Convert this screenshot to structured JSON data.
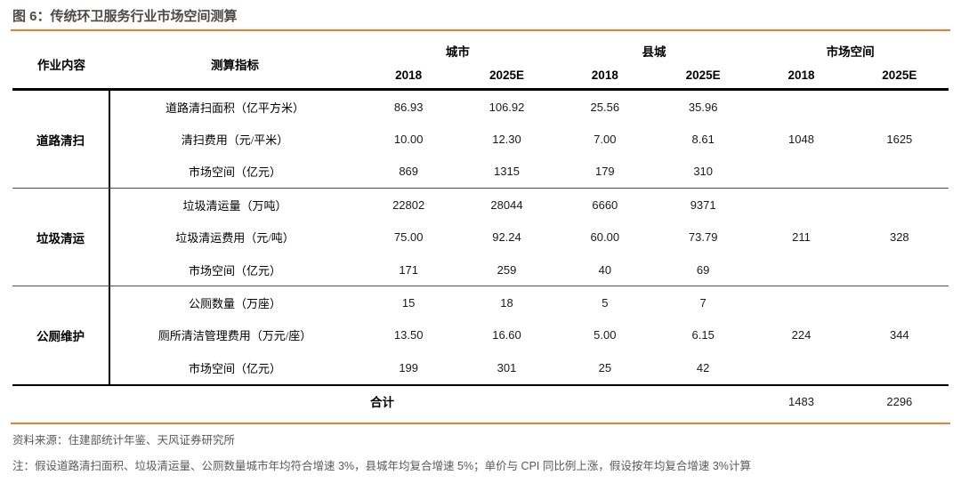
{
  "title": "图 6：传统环卫服务行业市场空间测算",
  "theme": {
    "accent_orange": "#ED7D31",
    "title_color": "#4F4A46",
    "footer_text_color": "#595959",
    "table_text_color": "#000000"
  },
  "table": {
    "col_headers": {
      "content": "作业内容",
      "indicator": "测算指标",
      "groups": [
        {
          "label": "城市",
          "years": [
            "2018",
            "2025E"
          ]
        },
        {
          "label": "县城",
          "years": [
            "2018",
            "2025E"
          ]
        },
        {
          "label": "市场空间",
          "years": [
            "2018",
            "2025E"
          ]
        }
      ]
    },
    "row_groups": [
      {
        "category": "道路清扫",
        "rows": [
          {
            "indicator": "道路清扫面积（亿平方米）",
            "values": [
              "86.93",
              "106.92",
              "25.56",
              "35.96",
              "",
              ""
            ]
          },
          {
            "indicator": "清扫费用（元/平米）",
            "values": [
              "10.00",
              "12.30",
              "7.00",
              "8.61",
              "1048",
              "1625"
            ]
          },
          {
            "indicator": "市场空间（亿元）",
            "values": [
              "869",
              "1315",
              "179",
              "310",
              "",
              ""
            ]
          }
        ]
      },
      {
        "category": "垃圾清运",
        "rows": [
          {
            "indicator": "垃圾清运量（万吨）",
            "values": [
              "22802",
              "28044",
              "6660",
              "9371",
              "",
              ""
            ]
          },
          {
            "indicator": "垃圾清运费用（元/吨）",
            "values": [
              "75.00",
              "92.24",
              "60.00",
              "73.79",
              "211",
              "328"
            ]
          },
          {
            "indicator": "市场空间（亿元）",
            "values": [
              "171",
              "259",
              "40",
              "69",
              "",
              ""
            ]
          }
        ]
      },
      {
        "category": "公厕维护",
        "rows": [
          {
            "indicator": "公厕数量（万座）",
            "values": [
              "15",
              "18",
              "5",
              "7",
              "",
              ""
            ]
          },
          {
            "indicator": "厕所清洁管理费用（万元/座）",
            "values": [
              "13.50",
              "16.60",
              "5.00",
              "6.15",
              "224",
              "344"
            ]
          },
          {
            "indicator": "市场空间（亿元）",
            "values": [
              "199",
              "301",
              "25",
              "42",
              "",
              ""
            ]
          }
        ]
      }
    ],
    "total_row": {
      "label": "合计",
      "values": [
        "1483",
        "2296"
      ]
    }
  },
  "footer": {
    "source": "资料来源：住建部统计年鉴、天风证券研究所",
    "note": "注：假设道路清扫面积、垃圾清运量、公厕数量城市年均符合增速 3%，县城年均复合增速 5%；单价与 CPI 同比例上涨，假设按年均复合增速 3%计算"
  }
}
